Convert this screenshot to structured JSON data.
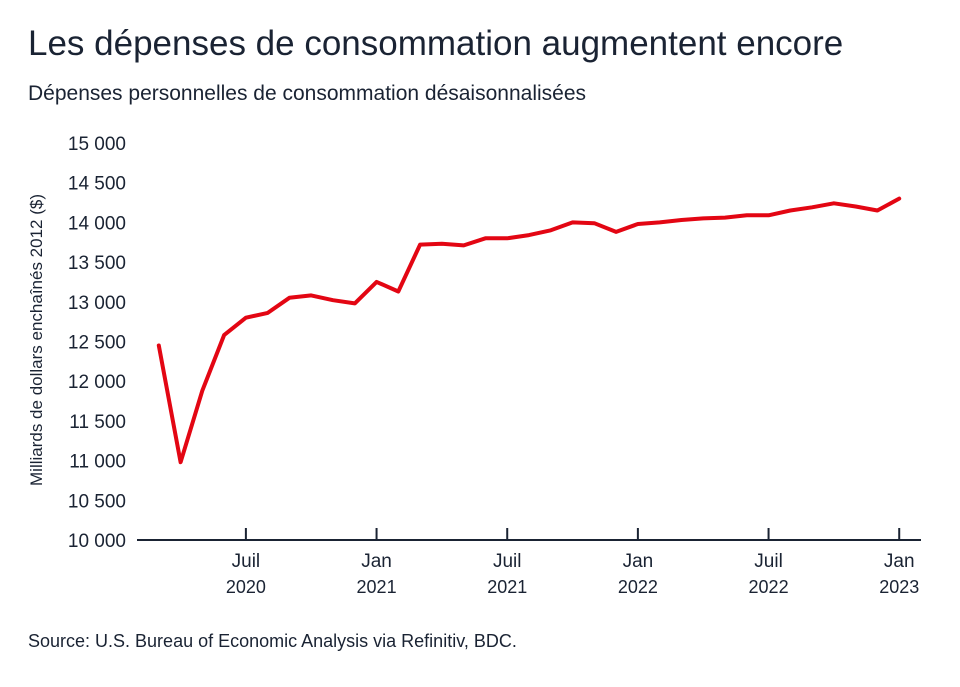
{
  "title": "Les dépenses de consommation augmentent encore",
  "subtitle": "Dépenses personnelles de consommation désaisonnalisées",
  "source": "Source: U.S. Bureau of Economic Analysis via Refinitiv, BDC.",
  "colors": {
    "line": "#e30613",
    "text": "#1a2333",
    "axis": "#1a2333"
  },
  "chart_data": {
    "type": "line",
    "title": "Les dépenses de consommation augmentent encore",
    "subtitle": "Dépenses personnelles de consommation désaisonnalisées",
    "ylabel": "Milliards de dollars enchaînés 2012 ($)",
    "xlabel": "",
    "ylim": [
      10000,
      15000
    ],
    "yticks": [
      10000,
      10500,
      11000,
      11500,
      12000,
      12500,
      13000,
      13500,
      14000,
      14500,
      15000
    ],
    "ytick_labels": [
      "10 000",
      "10 500",
      "11 000",
      "11 500",
      "12 000",
      "12 500",
      "13 000",
      "13 500",
      "14 000",
      "14 500",
      "15 000"
    ],
    "xlim": [
      "2020-02",
      "2023-02"
    ],
    "xticks": [
      {
        "date": "2020-07",
        "line1": "Juil",
        "line2": "2020"
      },
      {
        "date": "2021-01",
        "line1": "Jan",
        "line2": "2021"
      },
      {
        "date": "2021-07",
        "line1": "Juil",
        "line2": "2021"
      },
      {
        "date": "2022-01",
        "line1": "Jan",
        "line2": "2022"
      },
      {
        "date": "2022-07",
        "line1": "Juil",
        "line2": "2022"
      },
      {
        "date": "2023-01",
        "line1": "Jan",
        "line2": "2023"
      }
    ],
    "grid": false,
    "series": [
      {
        "x": [
          "2020-03",
          "2020-04",
          "2020-05",
          "2020-06",
          "2020-07",
          "2020-08",
          "2020-09",
          "2020-10",
          "2020-11",
          "2020-12",
          "2021-01",
          "2021-02",
          "2021-03",
          "2021-04",
          "2021-05",
          "2021-06",
          "2021-07",
          "2021-08",
          "2021-09",
          "2021-10",
          "2021-11",
          "2021-12",
          "2022-01",
          "2022-02",
          "2022-03",
          "2022-04",
          "2022-05",
          "2022-06",
          "2022-07",
          "2022-08",
          "2022-09",
          "2022-10",
          "2022-11",
          "2022-12",
          "2023-01"
        ],
        "values": [
          12450,
          10980,
          11880,
          12580,
          12800,
          12860,
          13050,
          13080,
          13020,
          12980,
          13250,
          13130,
          13720,
          13730,
          13710,
          13800,
          13800,
          13840,
          13900,
          14000,
          13990,
          13880,
          13980,
          14000,
          14030,
          14050,
          14060,
          14090,
          14090,
          14150,
          14190,
          14240,
          14200,
          14150,
          14300
        ]
      }
    ]
  }
}
